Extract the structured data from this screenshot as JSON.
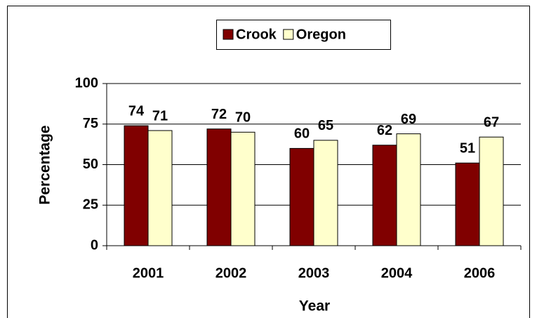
{
  "chart_data": {
    "type": "bar",
    "categories": [
      "2001",
      "2002",
      "2003",
      "2004",
      "2006"
    ],
    "series": [
      {
        "name": "Crook",
        "color": "#800000",
        "values": [
          74,
          72,
          60,
          62,
          51
        ]
      },
      {
        "name": "Oregon",
        "color": "#ffffcc",
        "values": [
          71,
          70,
          65,
          69,
          67
        ]
      }
    ],
    "x_label": "Year",
    "y_label": "Percentage",
    "ylim": [
      0,
      100
    ],
    "yticks": [
      0,
      25,
      50,
      75,
      100
    ],
    "grid": true,
    "legend": "top"
  }
}
